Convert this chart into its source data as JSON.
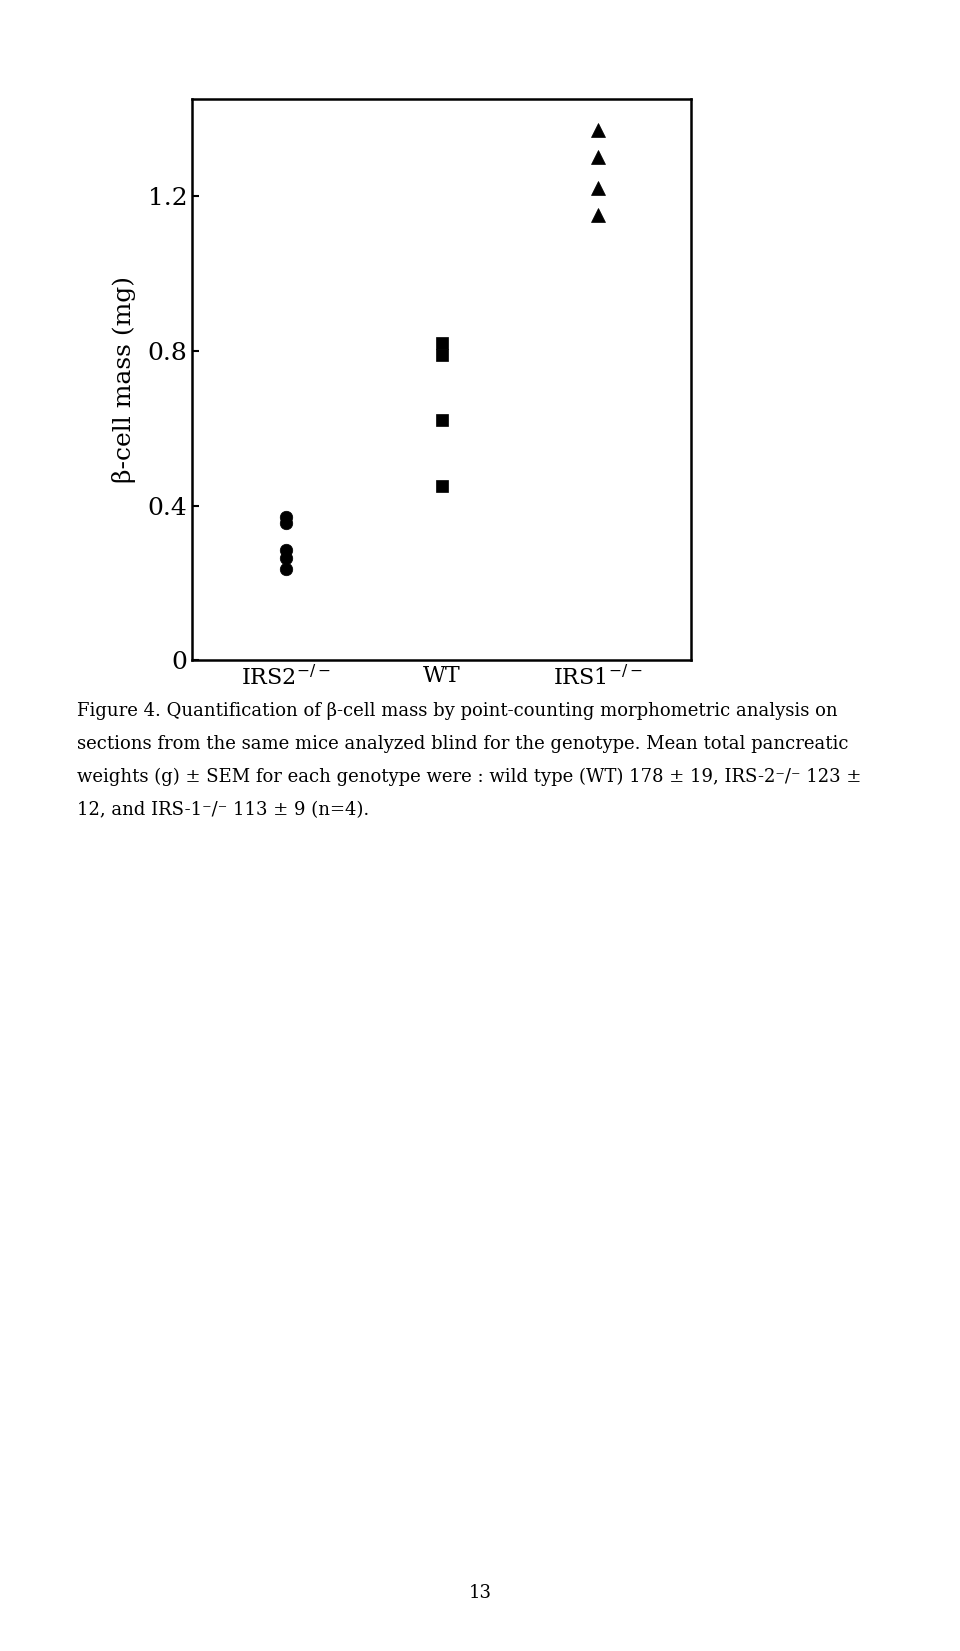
{
  "title": "",
  "ylabel": "β-cell mass (mg)",
  "ylim": [
    0,
    1.45
  ],
  "yticks": [
    0,
    0.4,
    0.8,
    1.2
  ],
  "ytick_labels": [
    "0",
    "0.4",
    "0.8",
    "1.2"
  ],
  "categories": [
    "IRS2$^{-/-}$",
    "WT",
    "IRS1$^{-/-}$"
  ],
  "irs2_values": [
    0.37,
    0.355,
    0.285,
    0.265,
    0.235
  ],
  "wt_values": [
    0.82,
    0.79,
    0.62,
    0.45
  ],
  "irs1_values": [
    1.37,
    1.3,
    1.22,
    1.15
  ],
  "background_color": "#ffffff",
  "point_color": "#000000",
  "fig_width": 9.6,
  "fig_height": 16.51,
  "caption_line1": "Figure 4. Quantification of β-cell mass by point-counting morphometric analysis on",
  "caption_line2": "sections from the same mice analyzed blind for the genotype. Mean total pancreatic",
  "caption_line3": "weights (g) ± SEM for each genotype were : wild type (WT) 178 ± 19, IRS-2⁻/⁻ 123 ±",
  "caption_line4": "12, and IRS-1⁻/⁻ 113 ± 9 (n=4).",
  "page_number": "13"
}
